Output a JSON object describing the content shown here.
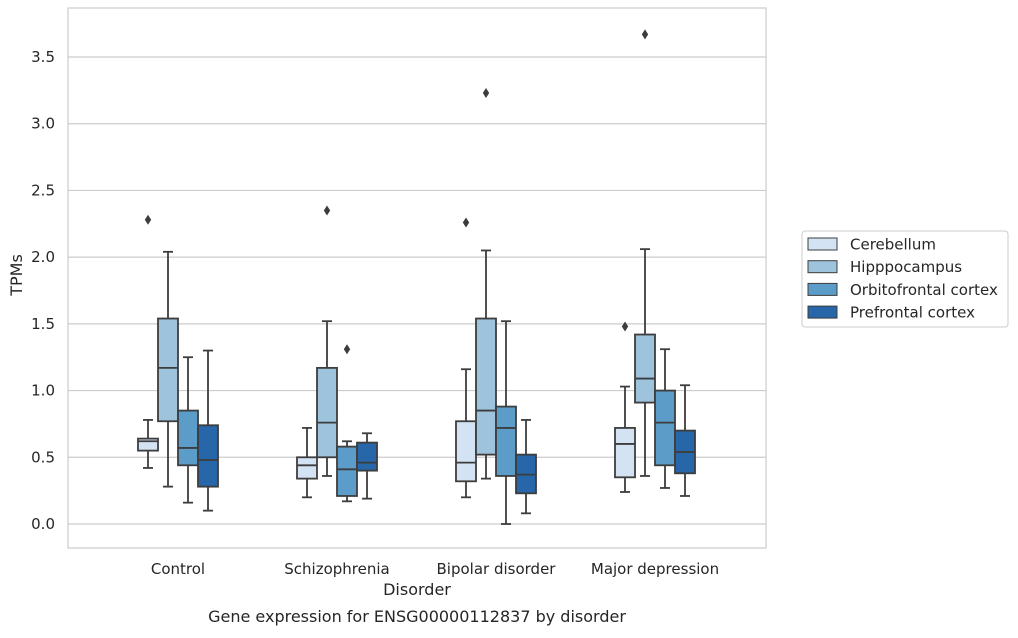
{
  "caption": "Gene expression for ENSG00000112837 by disorder",
  "chart_data": {
    "type": "box",
    "xlabel": "Disorder",
    "ylabel": "TPMs",
    "ylim": [
      -0.18,
      3.87
    ],
    "yticks": [
      "0.0",
      "0.5",
      "1.0",
      "1.5",
      "2.0",
      "2.5",
      "3.0",
      "3.5"
    ],
    "grid": "horizontal",
    "legend_position": "right",
    "categories": [
      "Control",
      "Schizophrenia",
      "Bipolar disorder",
      "Major depression"
    ],
    "series": [
      {
        "name": "Cerebellum",
        "color": "#d4e3f4",
        "boxes": [
          {
            "whisker_low": 0.42,
            "q1": 0.55,
            "median": 0.62,
            "q3": 0.64,
            "whisker_high": 0.78,
            "outliers": [
              2.28
            ]
          },
          {
            "whisker_low": 0.2,
            "q1": 0.34,
            "median": 0.44,
            "q3": 0.5,
            "whisker_high": 0.72,
            "outliers": []
          },
          {
            "whisker_low": 0.2,
            "q1": 0.32,
            "median": 0.46,
            "q3": 0.77,
            "whisker_high": 1.16,
            "outliers": [
              2.26
            ]
          },
          {
            "whisker_low": 0.24,
            "q1": 0.35,
            "median": 0.6,
            "q3": 0.72,
            "whisker_high": 1.03,
            "outliers": [
              1.48
            ]
          }
        ]
      },
      {
        "name": "Hipppocampus",
        "color": "#9dc3dd",
        "boxes": [
          {
            "whisker_low": 0.28,
            "q1": 0.77,
            "median": 1.17,
            "q3": 1.54,
            "whisker_high": 2.04,
            "outliers": []
          },
          {
            "whisker_low": 0.36,
            "q1": 0.5,
            "median": 0.76,
            "q3": 1.17,
            "whisker_high": 1.52,
            "outliers": [
              2.35
            ]
          },
          {
            "whisker_low": 0.34,
            "q1": 0.52,
            "median": 0.85,
            "q3": 1.54,
            "whisker_high": 2.05,
            "outliers": [
              3.23
            ]
          },
          {
            "whisker_low": 0.36,
            "q1": 0.91,
            "median": 1.09,
            "q3": 1.42,
            "whisker_high": 2.06,
            "outliers": [
              3.67
            ]
          }
        ]
      },
      {
        "name": "Orbitofrontal cortex",
        "color": "#5b9cc8",
        "boxes": [
          {
            "whisker_low": 0.16,
            "q1": 0.44,
            "median": 0.57,
            "q3": 0.85,
            "whisker_high": 1.25,
            "outliers": []
          },
          {
            "whisker_low": 0.17,
            "q1": 0.21,
            "median": 0.41,
            "q3": 0.58,
            "whisker_high": 0.62,
            "outliers": [
              1.31
            ]
          },
          {
            "whisker_low": 0.0,
            "q1": 0.36,
            "median": 0.72,
            "q3": 0.88,
            "whisker_high": 1.52,
            "outliers": []
          },
          {
            "whisker_low": 0.27,
            "q1": 0.44,
            "median": 0.76,
            "q3": 1.0,
            "whisker_high": 1.31,
            "outliers": []
          }
        ]
      },
      {
        "name": "Prefrontal cortex",
        "color": "#2766a8",
        "boxes": [
          {
            "whisker_low": 0.1,
            "q1": 0.28,
            "median": 0.48,
            "q3": 0.74,
            "whisker_high": 1.3,
            "outliers": []
          },
          {
            "whisker_low": 0.19,
            "q1": 0.4,
            "median": 0.46,
            "q3": 0.61,
            "whisker_high": 0.68,
            "outliers": []
          },
          {
            "whisker_low": 0.08,
            "q1": 0.23,
            "median": 0.37,
            "q3": 0.52,
            "whisker_high": 0.78,
            "outliers": []
          },
          {
            "whisker_low": 0.21,
            "q1": 0.38,
            "median": 0.54,
            "q3": 0.7,
            "whisker_high": 1.04,
            "outliers": []
          }
        ]
      }
    ]
  }
}
